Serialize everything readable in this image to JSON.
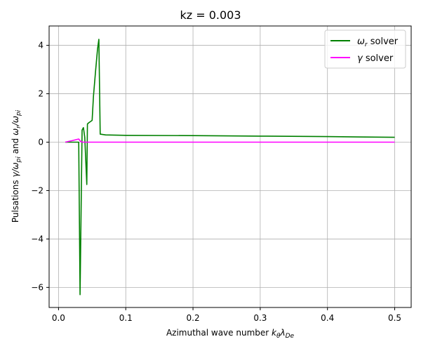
{
  "chart_data": {
    "type": "line",
    "title": "kz = 0.003",
    "xlabel_main": "Azimuthal wave number ",
    "xlabel_k": "k",
    "xlabel_k_sub": "θ",
    "xlabel_lambda": "λ",
    "xlabel_lambda_sub": "De",
    "ylabel_main": "Pulsations  ",
    "ylabel_gamma": "γ/ω",
    "ylabel_gamma_sub": "pi",
    "ylabel_and": " and ",
    "ylabel_omega": "ω",
    "ylabel_omega_sub": "r",
    "ylabel_slash": "/ω",
    "ylabel_slash_sub": "pi",
    "xlim": [
      -0.014,
      0.5245
    ],
    "ylim": [
      -6.83,
      4.8
    ],
    "x_ticks": [
      0.0,
      0.1,
      0.2,
      0.3,
      0.4,
      0.5
    ],
    "x_tick_labels": [
      "0.0",
      "0.1",
      "0.2",
      "0.3",
      "0.4",
      "0.5"
    ],
    "y_ticks": [
      -6,
      -4,
      -2,
      0,
      2,
      4
    ],
    "y_tick_labels": [
      "−6",
      "−4",
      "−2",
      "0",
      "2",
      "4"
    ],
    "grid": true,
    "legend_position": "top-right",
    "series": [
      {
        "name_symbol": "ω",
        "name_sub": "r",
        "name_rest": " solver",
        "color": "#008000",
        "x": [
          0.01,
          0.03,
          0.032,
          0.035,
          0.037,
          0.039,
          0.042,
          0.043,
          0.045,
          0.05,
          0.052,
          0.055,
          0.058,
          0.06,
          0.062,
          0.07,
          0.1,
          0.2,
          0.3,
          0.4,
          0.5
        ],
        "y": [
          0.0,
          0.0,
          -6.3,
          0.5,
          0.6,
          0.2,
          -1.75,
          0.75,
          0.8,
          0.9,
          1.9,
          2.9,
          3.85,
          4.25,
          0.33,
          0.3,
          0.28,
          0.27,
          0.25,
          0.23,
          0.2
        ]
      },
      {
        "name_symbol": "γ",
        "name_sub": "",
        "name_rest": " solver",
        "color": "#ff00ff",
        "x": [
          0.01,
          0.02,
          0.03,
          0.033,
          0.036,
          0.04,
          0.1,
          0.2,
          0.3,
          0.4,
          0.5
        ],
        "y": [
          0.0,
          0.06,
          0.13,
          0.03,
          0.0,
          0.0,
          0.0,
          0.0,
          0.0,
          0.0,
          0.0
        ]
      }
    ]
  }
}
